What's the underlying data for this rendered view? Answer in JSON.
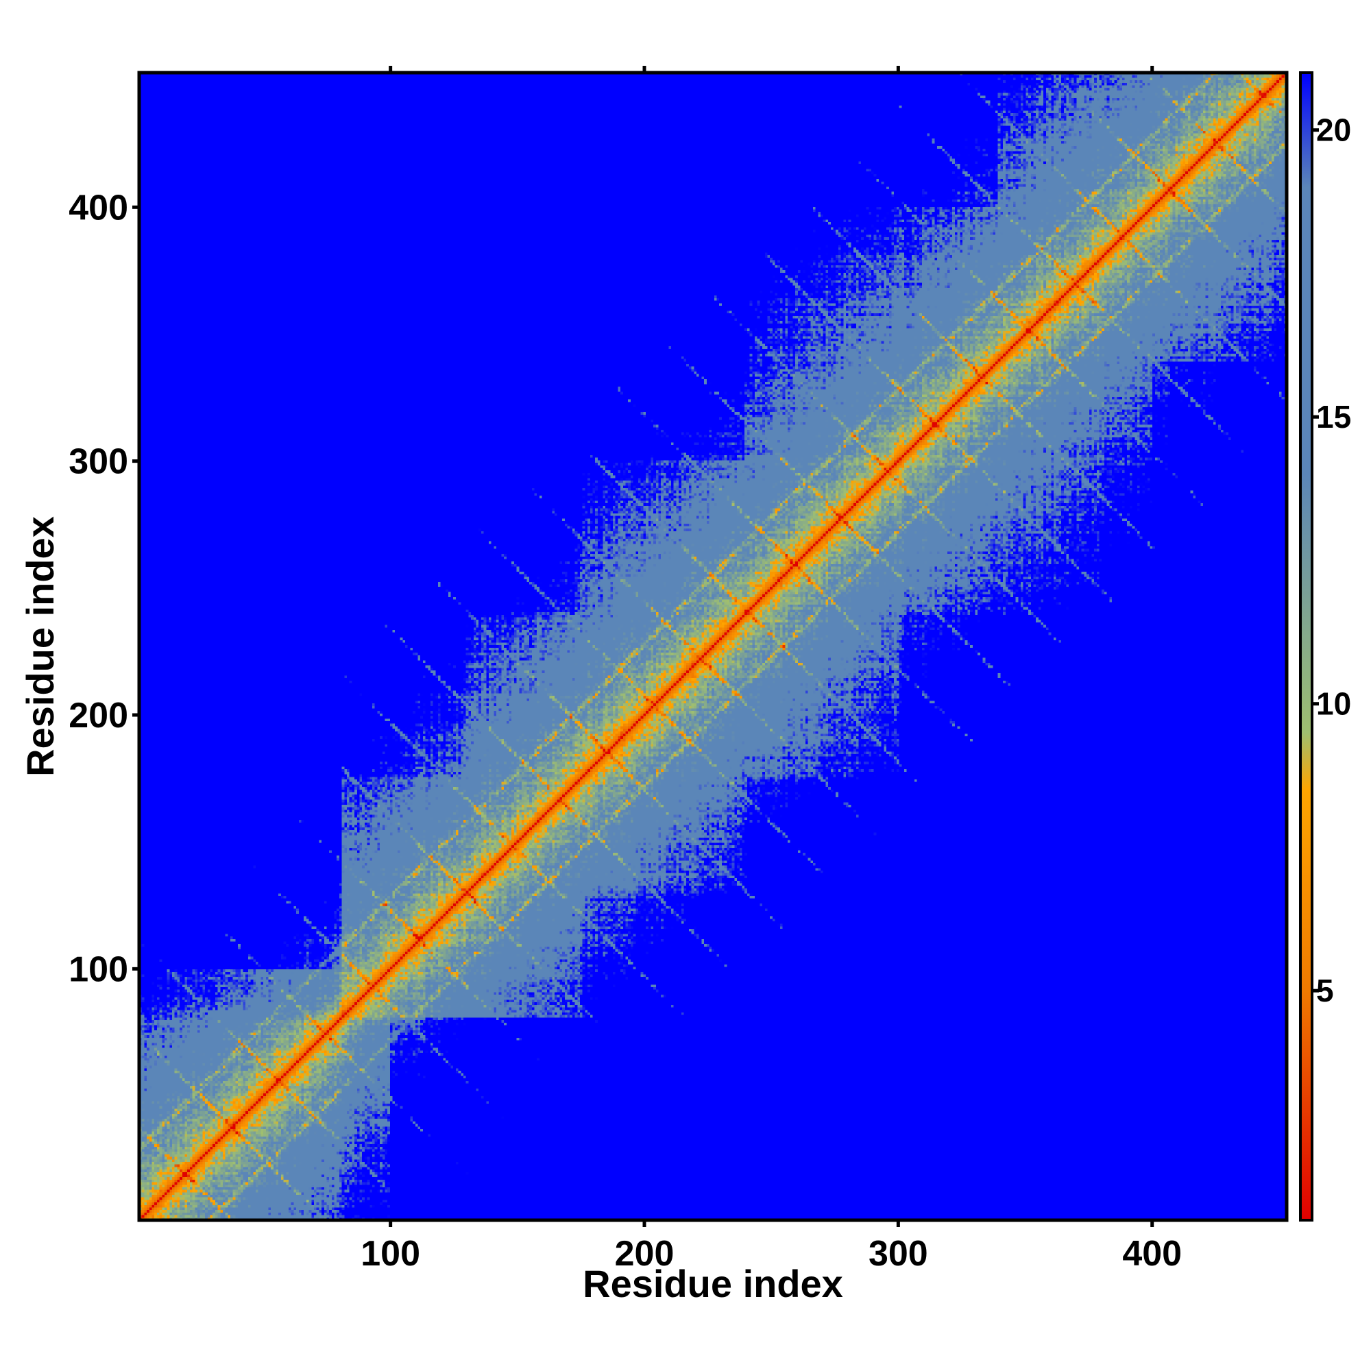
{
  "chart_data": {
    "type": "heatmap",
    "title": "",
    "xlabel": "Residue index",
    "ylabel": "Residue index",
    "xlim": [
      1,
      453
    ],
    "ylim": [
      1,
      453
    ],
    "x_ticks": [
      100,
      200,
      300,
      400
    ],
    "y_ticks": [
      100,
      200,
      300,
      400
    ],
    "colorbar": {
      "range": [
        1,
        21
      ],
      "ticks": [
        5,
        10,
        15,
        20
      ],
      "colors": [
        {
          "value": 1,
          "color": "#e00000"
        },
        {
          "value": 5,
          "color": "#f07a00"
        },
        {
          "value": 8.5,
          "color": "#ffa500"
        },
        {
          "value": 9.5,
          "color": "#9fbf70"
        },
        {
          "value": 14,
          "color": "#5b86b8"
        },
        {
          "value": 19,
          "color": "#5b86b8"
        },
        {
          "value": 21,
          "color": "#0000ff"
        }
      ]
    },
    "grid": false,
    "legend": "colorbar-right",
    "features": {
      "diagonal": "contact distance near 0 along i = j",
      "low_distance_blocks": [
        [
          1,
          80
        ],
        [
          80,
          175
        ],
        [
          130,
          240
        ],
        [
          175,
          300
        ],
        [
          240,
          400
        ],
        [
          340,
          453
        ]
      ],
      "high_distance_regions": [
        [
          1,
          80,
          100,
          453
        ],
        [
          380,
          453,
          1,
          140
        ],
        [
          300,
          453,
          1,
          80
        ]
      ]
    }
  }
}
